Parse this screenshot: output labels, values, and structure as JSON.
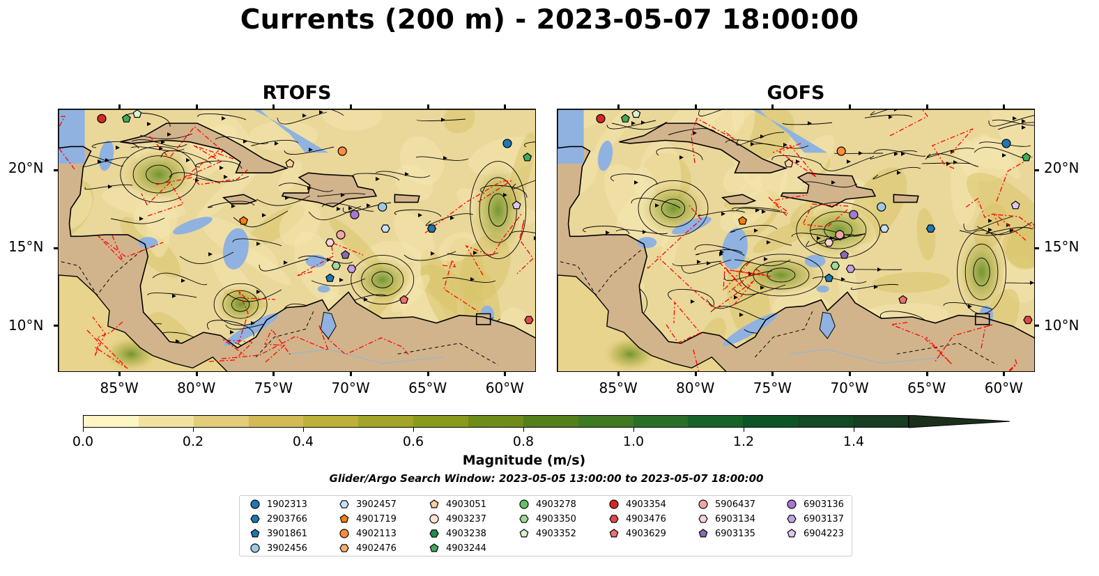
{
  "title": "Currents (200 m) - 2023-05-07 18:00:00",
  "panels": [
    {
      "title": "RTOFS"
    },
    {
      "title": "GOFS"
    }
  ],
  "axes": {
    "lon_ticks": [
      "85°W",
      "80°W",
      "75°W",
      "70°W",
      "65°W",
      "60°W"
    ],
    "lat_ticks": [
      "20°N",
      "15°N",
      "10°N"
    ],
    "lon_range": [
      -89.0,
      -58.0
    ],
    "lat_range": [
      7.0,
      24.0
    ]
  },
  "colors": {
    "land": "#d2b48c",
    "shallow_water": "#8fb2e0",
    "track": "#ff0000",
    "streamline": "#000000"
  },
  "colorbar": {
    "label": "Magnitude (m/s)",
    "ticks": [
      "0.0",
      "0.2",
      "0.4",
      "0.6",
      "0.8",
      "1.0",
      "1.2",
      "1.4"
    ],
    "range": [
      0.0,
      1.5
    ],
    "extend": "max",
    "colors": [
      "#fdf5c4",
      "#f1e2a1",
      "#e3cd7a",
      "#d2bb55",
      "#bdb13a",
      "#a4a428",
      "#8a9a1d",
      "#6f8c1a",
      "#548019",
      "#3f7a22",
      "#2a6f28",
      "#176228",
      "#0e5526",
      "#124a26",
      "#183d22",
      "#1c2f1c"
    ]
  },
  "search_window": "Glider/Argo Search Window: 2023-05-05 13:00:00 to 2023-05-07 18:00:00",
  "legend": {
    "columns": [
      [
        {
          "id": "1902313",
          "color": "#1f77b4",
          "marker": "circle"
        },
        {
          "id": "2903766",
          "color": "#1f77b4",
          "marker": "hexagon"
        },
        {
          "id": "3901861",
          "color": "#1f77b4",
          "marker": "pentagon"
        },
        {
          "id": "3902456",
          "color": "#9ecae1",
          "marker": "circle"
        }
      ],
      [
        {
          "id": "3902457",
          "color": "#c6e2f7",
          "marker": "hexagon"
        },
        {
          "id": "4901719",
          "color": "#ff7f0e",
          "marker": "pentagon"
        },
        {
          "id": "4902113",
          "color": "#fd8d3c",
          "marker": "circle"
        },
        {
          "id": "4902476",
          "color": "#fdae6b",
          "marker": "hexagon"
        }
      ],
      [
        {
          "id": "4903051",
          "color": "#fdd0a2",
          "marker": "pentagon"
        },
        {
          "id": "4903237",
          "color": "#fee6ce",
          "marker": "circle"
        },
        {
          "id": "4903238",
          "color": "#238b45",
          "marker": "hexagon"
        },
        {
          "id": "4903244",
          "color": "#41ab5d",
          "marker": "pentagon"
        }
      ],
      [
        {
          "id": "4903278",
          "color": "#66c266",
          "marker": "circle"
        },
        {
          "id": "4903350",
          "color": "#a1d99b",
          "marker": "hexagon"
        },
        {
          "id": "4903352",
          "color": "#d9f2d0",
          "marker": "pentagon"
        }
      ],
      [
        {
          "id": "4903354",
          "color": "#d62728",
          "marker": "circle"
        },
        {
          "id": "4903476",
          "color": "#e0474c",
          "marker": "hexagon"
        },
        {
          "id": "4903629",
          "color": "#ef6f73",
          "marker": "pentagon"
        }
      ],
      [
        {
          "id": "5906437",
          "color": "#f4a5a5",
          "marker": "circle"
        },
        {
          "id": "6903134",
          "color": "#fbd3d3",
          "marker": "hexagon"
        },
        {
          "id": "6903135",
          "color": "#8c6bb1",
          "marker": "pentagon"
        }
      ],
      [
        {
          "id": "6903136",
          "color": "#a678d0",
          "marker": "circle"
        },
        {
          "id": "6903137",
          "color": "#c4a3e4",
          "marker": "hexagon"
        },
        {
          "id": "6904223",
          "color": "#ddc7f2",
          "marker": "pentagon"
        }
      ]
    ]
  },
  "floats": [
    {
      "id": "4903354",
      "lon": -86.2,
      "lat": 23.4
    },
    {
      "id": "4903244",
      "lon": -84.6,
      "lat": 23.4
    },
    {
      "id": "4903352",
      "lon": -83.9,
      "lat": 23.7
    },
    {
      "id": "4903051",
      "lon": -74.0,
      "lat": 20.5
    },
    {
      "id": "4902113",
      "lon": -70.6,
      "lat": 21.3
    },
    {
      "id": "1902313",
      "lon": -59.9,
      "lat": 21.8
    },
    {
      "id": "4903244",
      "lon": -58.6,
      "lat": 20.9
    },
    {
      "id": "6904223",
      "lon": -59.3,
      "lat": 17.8
    },
    {
      "id": "4901719",
      "lon": -77.0,
      "lat": 16.8
    },
    {
      "id": "3902456",
      "lon": -68.0,
      "lat": 17.7
    },
    {
      "id": "6903136",
      "lon": -69.8,
      "lat": 17.2
    },
    {
      "id": "3902457",
      "lon": -67.8,
      "lat": 16.3
    },
    {
      "id": "2903766",
      "lon": -64.8,
      "lat": 16.3
    },
    {
      "id": "5906437",
      "lon": -70.7,
      "lat": 15.9
    },
    {
      "id": "6903134",
      "lon": -71.4,
      "lat": 15.4
    },
    {
      "id": "6903135",
      "lon": -70.4,
      "lat": 14.6
    },
    {
      "id": "4903350",
      "lon": -71.0,
      "lat": 13.9
    },
    {
      "id": "6903137",
      "lon": -70.0,
      "lat": 13.7
    },
    {
      "id": "3901861",
      "lon": -71.4,
      "lat": 13.1
    },
    {
      "id": "4903629",
      "lon": -66.6,
      "lat": 11.7
    },
    {
      "id": "4903476",
      "lon": -58.5,
      "lat": 10.4
    }
  ]
}
